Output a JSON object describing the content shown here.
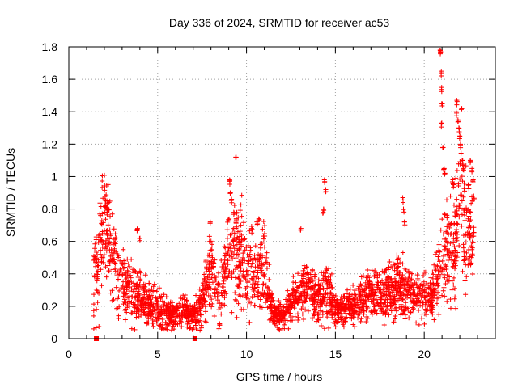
{
  "chart_data": {
    "type": "scatter",
    "title": "Day 336 of 2024, SRMTID for receiver ac53",
    "xlabel": "GPS time / hours",
    "ylabel": "SRMTID / TECUs",
    "xlim": [
      0,
      24
    ],
    "ylim": [
      0,
      1.8
    ],
    "xticks": [
      0,
      5,
      10,
      15,
      20
    ],
    "xtick_labels": [
      "0",
      "5",
      "10",
      "15",
      "20"
    ],
    "yticks": [
      0,
      0.2,
      0.4,
      0.6,
      0.8,
      1,
      1.2,
      1.4,
      1.6,
      1.8
    ],
    "ytick_labels": [
      "0",
      "0.2",
      "0.4",
      "0.6",
      "0.8",
      "1",
      "1.2",
      "1.4",
      "1.6",
      "1.8"
    ],
    "grid": true,
    "marker": "+",
    "series_color": "#ff0000",
    "gap_markers": [
      1.55,
      7.1
    ],
    "envelope": [
      [
        1.4,
        0.38,
        0.22
      ],
      [
        1.7,
        0.5,
        0.28
      ],
      [
        2.0,
        0.78,
        0.25
      ],
      [
        2.3,
        0.58,
        0.22
      ],
      [
        2.7,
        0.42,
        0.18
      ],
      [
        3.0,
        0.36,
        0.17
      ],
      [
        3.5,
        0.28,
        0.14
      ],
      [
        4.0,
        0.24,
        0.12
      ],
      [
        4.5,
        0.22,
        0.1
      ],
      [
        5.0,
        0.18,
        0.09
      ],
      [
        5.5,
        0.15,
        0.08
      ],
      [
        6.0,
        0.15,
        0.07
      ],
      [
        6.5,
        0.18,
        0.08
      ],
      [
        7.0,
        0.14,
        0.06
      ],
      [
        7.5,
        0.22,
        0.1
      ],
      [
        8.0,
        0.45,
        0.2
      ],
      [
        8.5,
        0.25,
        0.12
      ],
      [
        9.0,
        0.55,
        0.25
      ],
      [
        9.5,
        0.5,
        0.25
      ],
      [
        10.0,
        0.42,
        0.2
      ],
      [
        10.5,
        0.35,
        0.18
      ],
      [
        11.0,
        0.45,
        0.2
      ],
      [
        11.5,
        0.15,
        0.07
      ],
      [
        12.0,
        0.14,
        0.06
      ],
      [
        12.5,
        0.22,
        0.1
      ],
      [
        13.0,
        0.3,
        0.12
      ],
      [
        13.5,
        0.32,
        0.13
      ],
      [
        14.0,
        0.22,
        0.1
      ],
      [
        14.5,
        0.32,
        0.15
      ],
      [
        15.0,
        0.18,
        0.08
      ],
      [
        15.5,
        0.18,
        0.08
      ],
      [
        16.0,
        0.2,
        0.09
      ],
      [
        16.5,
        0.24,
        0.1
      ],
      [
        17.0,
        0.28,
        0.12
      ],
      [
        17.5,
        0.26,
        0.1
      ],
      [
        18.0,
        0.28,
        0.12
      ],
      [
        18.5,
        0.32,
        0.14
      ],
      [
        19.0,
        0.3,
        0.12
      ],
      [
        19.5,
        0.26,
        0.1
      ],
      [
        20.0,
        0.25,
        0.1
      ],
      [
        20.5,
        0.26,
        0.1
      ],
      [
        20.9,
        0.5,
        0.2
      ],
      [
        21.3,
        0.55,
        0.25
      ],
      [
        21.7,
        0.55,
        0.25
      ],
      [
        22.0,
        0.9,
        0.3
      ],
      [
        22.4,
        0.65,
        0.25
      ],
      [
        22.8,
        0.6,
        0.25
      ]
    ],
    "spikes": [
      [
        2.05,
        0.82
      ],
      [
        2.15,
        0.85
      ],
      [
        2.25,
        0.8
      ],
      [
        3.85,
        0.68
      ],
      [
        4.0,
        0.62
      ],
      [
        7.95,
        0.72
      ],
      [
        9.05,
        0.98
      ],
      [
        9.1,
        0.9
      ],
      [
        9.15,
        0.86
      ],
      [
        9.4,
        1.12
      ],
      [
        9.3,
        0.78
      ],
      [
        10.3,
        0.68
      ],
      [
        10.6,
        0.72
      ],
      [
        10.7,
        0.74
      ],
      [
        13.05,
        0.68
      ],
      [
        14.3,
        0.78
      ],
      [
        14.35,
        0.8
      ],
      [
        14.4,
        0.98
      ],
      [
        14.45,
        0.92
      ],
      [
        18.8,
        0.87
      ],
      [
        18.85,
        0.8
      ],
      [
        18.9,
        0.72
      ],
      [
        20.9,
        1.78
      ],
      [
        20.92,
        1.77
      ],
      [
        20.95,
        1.65
      ],
      [
        20.97,
        1.55
      ],
      [
        21.0,
        1.45
      ],
      [
        20.98,
        1.33
      ],
      [
        21.05,
        1.18
      ],
      [
        21.1,
        1.05
      ],
      [
        21.15,
        1.02
      ],
      [
        21.6,
        0.98
      ],
      [
        21.65,
        0.95
      ],
      [
        21.8,
        1.4
      ],
      [
        21.85,
        1.47
      ],
      [
        21.9,
        1.35
      ],
      [
        21.95,
        1.3
      ],
      [
        22.0,
        1.25
      ],
      [
        22.05,
        1.2
      ],
      [
        22.1,
        1.42
      ],
      [
        22.15,
        1.1
      ],
      [
        22.2,
        1.05
      ],
      [
        22.5,
        0.95
      ],
      [
        22.6,
        1.1
      ],
      [
        22.7,
        1.05
      ],
      [
        22.75,
        0.98
      ],
      [
        22.8,
        0.88
      ]
    ],
    "point_count": 2600,
    "seed": 336
  }
}
